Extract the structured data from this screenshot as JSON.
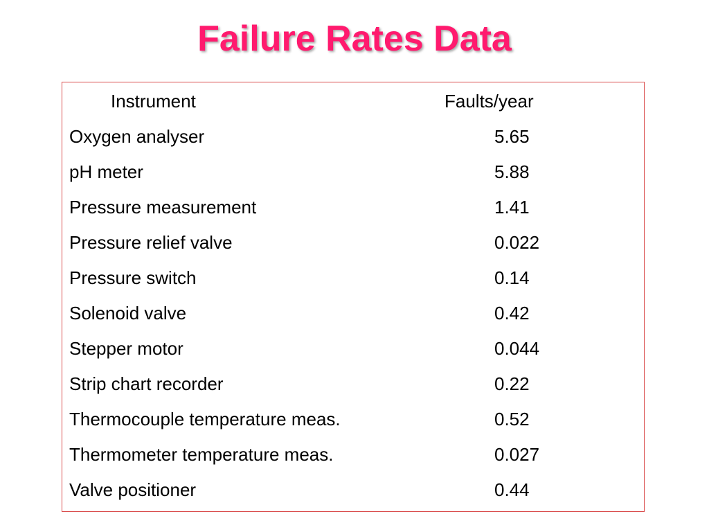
{
  "slide": {
    "title": "Failure Rates Data",
    "title_color": "#ff1a6e",
    "border_color": "#d94a4a"
  },
  "table": {
    "headers": {
      "instrument": "Instrument",
      "faults": "Faults/year"
    },
    "rows": [
      {
        "instrument": "Oxygen analyser",
        "faults": "5.65"
      },
      {
        "instrument": "pH meter",
        "faults": "5.88"
      },
      {
        "instrument": "Pressure measurement",
        "faults": "1.41"
      },
      {
        "instrument": "Pressure relief valve",
        "faults": "0.022"
      },
      {
        "instrument": "Pressure switch",
        "faults": "0.14"
      },
      {
        "instrument": "Solenoid valve",
        "faults": "0.42"
      },
      {
        "instrument": "Stepper motor",
        "faults": "0.044"
      },
      {
        "instrument": "Strip chart recorder",
        "faults": "0.22"
      },
      {
        "instrument": "Thermocouple temperature meas.",
        "faults": "0.52"
      },
      {
        "instrument": "Thermometer temperature meas.",
        "faults": "0.027"
      },
      {
        "instrument": "Valve positioner",
        "faults": "0.44"
      }
    ]
  }
}
